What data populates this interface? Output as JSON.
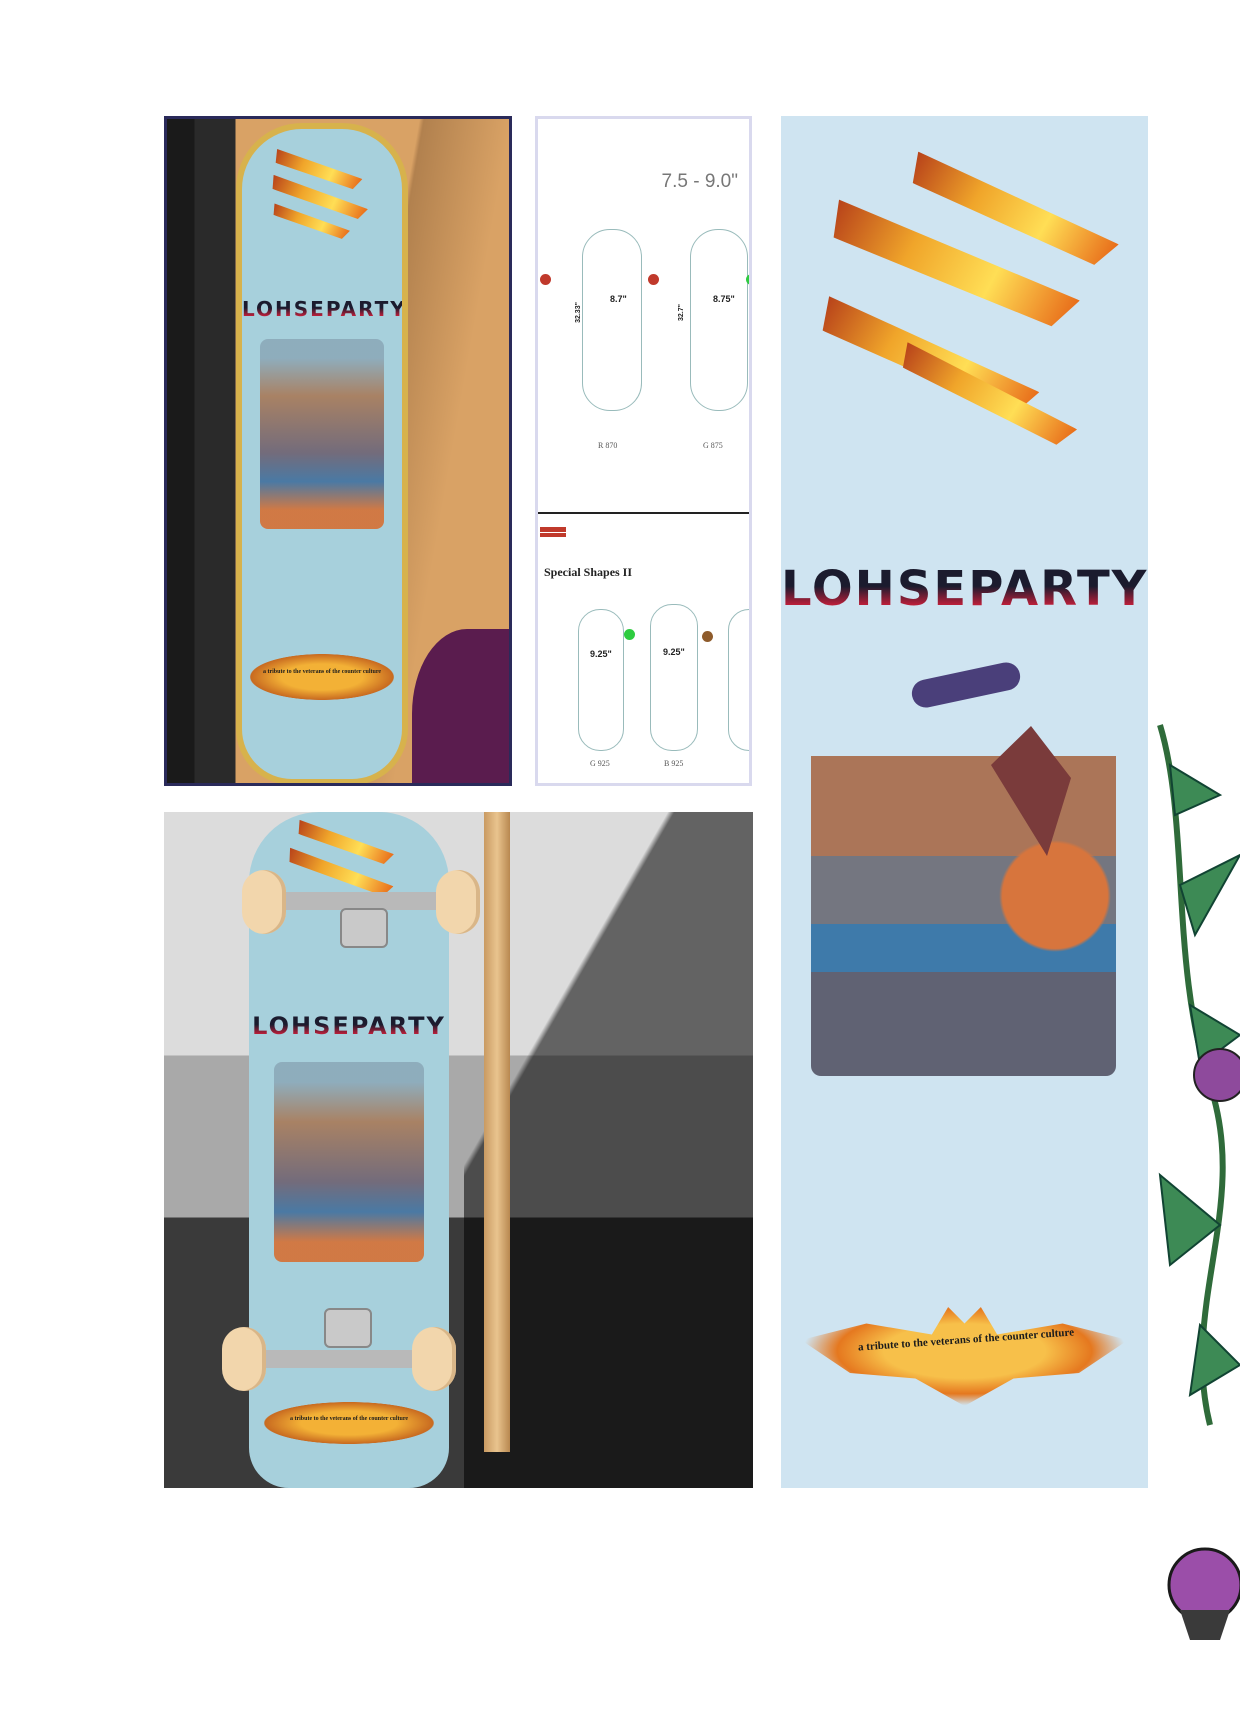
{
  "spec_sheet": {
    "size_range": "7.5 - 9.0\"",
    "shapes_top": [
      {
        "width": "8.7\"",
        "length": "32.33\"",
        "caption": "R 870",
        "dot_color": "#c0392b"
      },
      {
        "width": "8.75\"",
        "length": "32.7\"",
        "caption": "G 875",
        "dot_color": "#2ecc40"
      }
    ],
    "section_title": "Special Shapes II",
    "shapes_bottom": [
      {
        "width": "9.25\"",
        "caption": "G 925",
        "dot_color": "#2ecc40"
      },
      {
        "width": "9.25\"",
        "caption": "B 925",
        "dot_color": "#8e5b2b"
      }
    ]
  },
  "deck": {
    "brand": "LOHSEPARTY",
    "tagline": "a tribute to the veterans of the counter culture"
  },
  "colors": {
    "deck_blue": "#cfe4f1",
    "brand_red": "#c31f3a",
    "flame_orange": "#f0a52a"
  }
}
